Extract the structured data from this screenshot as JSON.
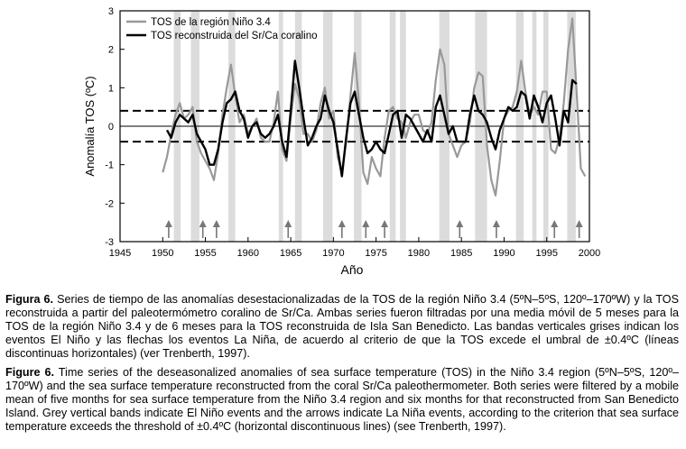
{
  "chart_data": {
    "type": "line",
    "xlabel": "Año",
    "ylabel": "Anomalía TOS (ºC)",
    "xlim": [
      1945,
      2000
    ],
    "ylim": [
      -3,
      3
    ],
    "xticks": [
      1945,
      1950,
      1955,
      1960,
      1965,
      1970,
      1975,
      1980,
      1985,
      1990,
      1995,
      2000
    ],
    "yticks": [
      -3,
      -2,
      -1,
      0,
      1,
      2,
      3
    ],
    "threshold_lines": [
      0.4,
      -0.4
    ],
    "zero_line": 0,
    "legend_position": "top-left",
    "el_nino_bands": [
      [
        1951.3,
        1952.1
      ],
      [
        1953.3,
        1954.3
      ],
      [
        1957.7,
        1958.5
      ],
      [
        1963.6,
        1964.1
      ],
      [
        1965.5,
        1966.3
      ],
      [
        1968.8,
        1969.9
      ],
      [
        1972.4,
        1973.3
      ],
      [
        1976.6,
        1977.3
      ],
      [
        1977.8,
        1978.5
      ],
      [
        1982.4,
        1983.6
      ],
      [
        1986.6,
        1988.0
      ],
      [
        1991.4,
        1992.3
      ],
      [
        1993.3,
        1993.8
      ],
      [
        1994.6,
        1995.2
      ],
      [
        1997.4,
        1998.4
      ]
    ],
    "la_nina_arrows": [
      1950.7,
      1954.7,
      1956.3,
      1964.7,
      1971.0,
      1973.8,
      1976.0,
      1984.8,
      1989.1,
      1995.9,
      1998.8
    ],
    "series": [
      {
        "name": "TOS de la región Niño 3.4",
        "color": "#999999",
        "x": [
          1950.0,
          1950.5,
          1951.0,
          1951.5,
          1952.0,
          1952.5,
          1953.0,
          1953.5,
          1954.0,
          1954.5,
          1955.0,
          1955.5,
          1956.0,
          1956.5,
          1957.0,
          1957.5,
          1958.0,
          1958.5,
          1959.0,
          1959.5,
          1960.0,
          1960.5,
          1961.0,
          1961.5,
          1962.0,
          1962.5,
          1963.0,
          1963.5,
          1964.0,
          1964.5,
          1965.0,
          1965.5,
          1966.0,
          1966.5,
          1967.0,
          1967.5,
          1968.0,
          1968.5,
          1969.0,
          1969.5,
          1970.0,
          1970.5,
          1971.0,
          1971.5,
          1972.0,
          1972.5,
          1973.0,
          1973.5,
          1974.0,
          1974.5,
          1975.0,
          1975.5,
          1976.0,
          1976.5,
          1977.0,
          1977.5,
          1978.0,
          1978.5,
          1979.0,
          1979.5,
          1980.0,
          1980.5,
          1981.0,
          1981.5,
          1982.0,
          1982.5,
          1983.0,
          1983.5,
          1984.0,
          1984.5,
          1985.0,
          1985.5,
          1986.0,
          1986.5,
          1987.0,
          1987.5,
          1988.0,
          1988.5,
          1989.0,
          1989.5,
          1990.0,
          1990.5,
          1991.0,
          1991.5,
          1992.0,
          1992.5,
          1993.0,
          1993.5,
          1994.0,
          1994.5,
          1995.0,
          1995.5,
          1996.0,
          1996.5,
          1997.0,
          1997.5,
          1998.0,
          1998.5,
          1999.0,
          1999.5
        ],
        "y": [
          -1.2,
          -0.8,
          -0.2,
          0.3,
          0.6,
          0.2,
          0.3,
          0.5,
          -0.4,
          -0.7,
          -0.9,
          -1.1,
          -1.4,
          -0.7,
          0.3,
          1.0,
          1.6,
          0.8,
          0.1,
          0.3,
          -0.2,
          0.0,
          0.2,
          -0.3,
          -0.4,
          -0.4,
          0.1,
          0.9,
          -0.6,
          -0.9,
          0.2,
          1.1,
          0.7,
          -0.2,
          -0.2,
          -0.4,
          -0.1,
          0.6,
          1.0,
          0.2,
          0.4,
          -0.8,
          -1.2,
          -0.4,
          0.8,
          1.9,
          0.6,
          -1.2,
          -1.5,
          -0.8,
          -1.1,
          -1.3,
          -0.3,
          0.4,
          0.5,
          0.2,
          0.1,
          -0.3,
          0.1,
          0.3,
          0.3,
          -0.1,
          -0.2,
          0.1,
          1.2,
          2.0,
          1.6,
          -0.2,
          -0.5,
          -0.8,
          -0.5,
          -0.4,
          0.1,
          1.0,
          1.4,
          1.3,
          -0.5,
          -1.4,
          -1.8,
          -0.9,
          0.2,
          0.4,
          0.5,
          0.9,
          1.7,
          0.9,
          0.3,
          0.5,
          0.3,
          0.9,
          0.9,
          -0.6,
          -0.7,
          -0.3,
          0.6,
          2.0,
          2.8,
          0.9,
          -1.1,
          -1.3
        ]
      },
      {
        "name": "TOS reconstruida del Sr/Ca coralino",
        "color": "#000000",
        "x": [
          1950.5,
          1951.0,
          1951.5,
          1952.0,
          1952.5,
          1953.0,
          1953.5,
          1954.0,
          1954.5,
          1955.0,
          1955.5,
          1956.0,
          1956.5,
          1957.0,
          1957.5,
          1958.0,
          1958.5,
          1959.0,
          1959.5,
          1960.0,
          1960.5,
          1961.0,
          1961.5,
          1962.0,
          1962.5,
          1963.0,
          1963.5,
          1964.0,
          1964.5,
          1965.0,
          1965.5,
          1966.0,
          1966.5,
          1967.0,
          1967.5,
          1968.0,
          1968.5,
          1969.0,
          1969.5,
          1970.0,
          1970.5,
          1971.0,
          1971.5,
          1972.0,
          1972.5,
          1973.0,
          1973.5,
          1974.0,
          1974.5,
          1975.0,
          1975.5,
          1976.0,
          1976.5,
          1977.0,
          1977.5,
          1978.0,
          1978.5,
          1979.0,
          1979.5,
          1980.0,
          1980.5,
          1981.0,
          1981.5,
          1982.0,
          1982.5,
          1983.0,
          1983.5,
          1984.0,
          1984.5,
          1985.0,
          1985.5,
          1986.0,
          1986.5,
          1987.0,
          1987.5,
          1988.0,
          1988.5,
          1989.0,
          1989.5,
          1990.0,
          1990.5,
          1991.0,
          1991.5,
          1992.0,
          1992.5,
          1993.0,
          1993.5,
          1994.0,
          1994.5,
          1995.0,
          1995.5,
          1996.0,
          1996.5,
          1997.0,
          1997.5,
          1998.0,
          1998.5
        ],
        "y": [
          -0.1,
          -0.3,
          0.1,
          0.3,
          0.2,
          0.1,
          0.3,
          -0.2,
          -0.4,
          -0.6,
          -1.0,
          -1.0,
          -0.6,
          0.1,
          0.6,
          0.7,
          0.9,
          0.4,
          0.2,
          -0.3,
          0.0,
          0.1,
          -0.2,
          -0.3,
          -0.2,
          0.0,
          0.3,
          -0.4,
          -0.8,
          0.4,
          1.7,
          1.0,
          0.2,
          -0.5,
          -0.3,
          0.0,
          0.2,
          0.8,
          0.4,
          0.1,
          -0.6,
          -1.3,
          -0.3,
          0.6,
          0.9,
          0.3,
          -0.3,
          -0.7,
          -0.6,
          -0.4,
          -0.6,
          -0.7,
          -0.2,
          0.3,
          0.4,
          -0.3,
          0.3,
          0.2,
          0.0,
          -0.2,
          -0.4,
          -0.1,
          -0.4,
          0.5,
          0.8,
          0.3,
          -0.2,
          0.0,
          -0.4,
          -0.4,
          -0.4,
          0.3,
          0.8,
          0.4,
          0.3,
          0.1,
          -0.3,
          -0.6,
          -0.1,
          0.2,
          0.5,
          0.4,
          0.5,
          0.9,
          0.8,
          0.2,
          0.8,
          0.5,
          0.1,
          0.6,
          0.8,
          0.2,
          -0.5,
          0.4,
          0.1,
          1.2,
          1.1
        ]
      }
    ]
  },
  "captions": {
    "es_label": "Figura 6.",
    "es_text": " Series de tiempo de las anomalías desestacionalizadas de la TOS de la región Niño 3.4 (5ºN–5ºS, 120º–170ºW) y la TOS reconstruida a partir del paleotermómetro coralino de Sr/Ca. Ambas series fueron filtradas por una media móvil de 5 meses para la TOS de la región Niño 3.4 y de 6 meses para la TOS reconstruida de Isla San Benedicto. Las bandas verticales grises indican los eventos El Niño y las flechas los eventos La Niña, de acuerdo al criterio de que la TOS excede el umbral de ±0.4ºC (líneas discontinuas horizontales) (ver Trenberth, 1997).",
    "en_label": "Figure 6.",
    "en_text": " Time series of the deseasonalized anomalies of sea surface temperature (TOS) in the Niño 3.4 region (5ºN–5ºS, 120º–170ºW) and the sea surface temperature reconstructed from the coral Sr/Ca paleothermometer. Both series were filtered by a mobile mean of five months for sea surface temperature from the Niño 3.4 region and six months for that reconstructed from San Benedicto Island. Grey vertical bands indicate El Niño events and the arrows indicate La Niña events, according to the criterion that sea surface temperature exceeds the threshold of ±0.4ºC (horizontal discontinuous lines) (see Trenberth, 1997)."
  }
}
